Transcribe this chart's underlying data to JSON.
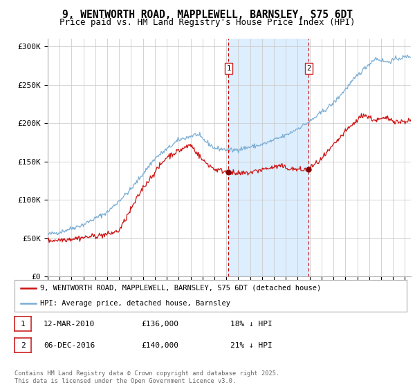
{
  "title": "9, WENTWORTH ROAD, MAPPLEWELL, BARNSLEY, S75 6DT",
  "subtitle": "Price paid vs. HM Land Registry's House Price Index (HPI)",
  "ylabel_ticks": [
    "£0",
    "£50K",
    "£100K",
    "£150K",
    "£200K",
    "£250K",
    "£300K"
  ],
  "ytick_values": [
    0,
    50000,
    100000,
    150000,
    200000,
    250000,
    300000
  ],
  "ylim": [
    0,
    310000
  ],
  "xlim_start": 1995,
  "xlim_end": 2025.5,
  "hpi_color": "#7aadd4",
  "price_color": "#cc1111",
  "shade_color": "#ddeeff",
  "vline_color": "#cc0000",
  "title_fontsize": 10.5,
  "subtitle_fontsize": 9,
  "legend_label_red": "9, WENTWORTH ROAD, MAPPLEWELL, BARNSLEY, S75 6DT (detached house)",
  "legend_label_blue": "HPI: Average price, detached house, Barnsley",
  "marker1_year": 2010.19,
  "marker2_year": 2016.92,
  "sale1_price_val": 136000,
  "sale2_price_val": 140000,
  "sale1_date": "12-MAR-2010",
  "sale1_price": "£136,000",
  "sale1_hpi": "18% ↓ HPI",
  "sale2_date": "06-DEC-2016",
  "sale2_price": "£140,000",
  "sale2_hpi": "21% ↓ HPI",
  "footer": "Contains HM Land Registry data © Crown copyright and database right 2025.\nThis data is licensed under the Open Government Licence v3.0.",
  "background_color": "#ffffff"
}
